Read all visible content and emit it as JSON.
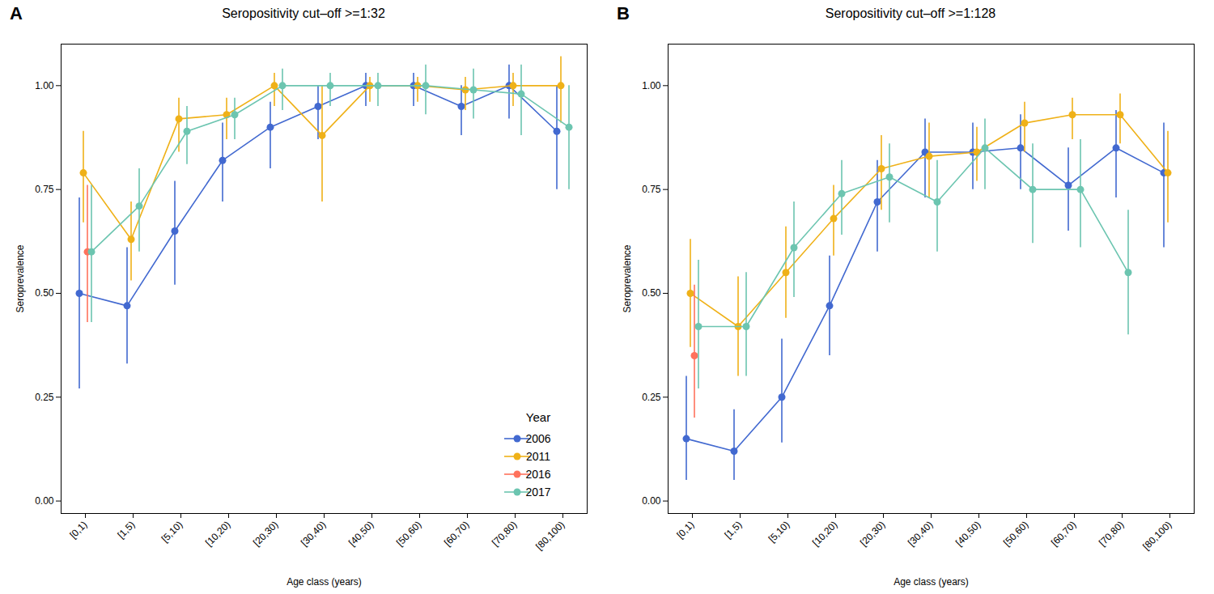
{
  "chart_data": [
    {
      "type": "line",
      "title": "Seropositivity cut–off >=1:32",
      "annotations": [
        "A"
      ],
      "xlabel": "Age class (years)",
      "ylabel": "Seroprevalence",
      "categories": [
        "[0,1)",
        "[1,5)",
        "[5,10)",
        "[10,20)",
        "[20,30)",
        "[30,40)",
        "[40,50)",
        "[50,60)",
        "[60,70)",
        "[70,80)",
        "[80,100)"
      ],
      "ylim": [
        -0.03,
        1.1
      ],
      "yticks": [
        {
          "value": 0.0,
          "label": "0.00"
        },
        0.25,
        {
          "value": 0.5,
          "label": "0.50"
        },
        0.75,
        {
          "value": 1.0,
          "label": "1.00"
        }
      ],
      "legend": "lower right",
      "legend_title": "Year",
      "series": [
        {
          "name": "2006",
          "values": [
            0.5,
            0.47,
            0.65,
            0.82,
            0.9,
            0.95,
            1.0,
            1.0,
            0.95,
            1.0,
            0.89
          ],
          "lower": [
            0.27,
            0.33,
            0.52,
            0.72,
            0.8,
            0.87,
            0.95,
            0.95,
            0.88,
            0.92,
            0.75
          ],
          "upper": [
            0.73,
            0.61,
            0.77,
            0.91,
            0.96,
            1.0,
            1.03,
            1.03,
            1.0,
            1.05,
            1.0
          ]
        },
        {
          "name": "2011",
          "values": [
            0.79,
            0.63,
            0.92,
            0.93,
            1.0,
            0.88,
            1.0,
            1.0,
            0.99,
            1.0,
            1.0
          ],
          "lower": [
            0.67,
            0.53,
            0.84,
            0.87,
            0.95,
            0.72,
            0.96,
            0.96,
            0.94,
            0.95,
            0.91
          ],
          "upper": [
            0.89,
            0.72,
            0.97,
            0.97,
            1.03,
            1.0,
            1.02,
            1.02,
            1.02,
            1.03,
            1.07
          ]
        },
        {
          "name": "2016",
          "values": [
            0.6,
            null,
            null,
            null,
            null,
            null,
            null,
            null,
            null,
            null,
            null
          ],
          "lower": [
            0.43,
            null,
            null,
            null,
            null,
            null,
            null,
            null,
            null,
            null,
            null
          ],
          "upper": [
            0.76,
            null,
            null,
            null,
            null,
            null,
            null,
            null,
            null,
            null,
            null
          ]
        },
        {
          "name": "2017",
          "values": [
            0.6,
            0.71,
            0.89,
            0.93,
            1.0,
            1.0,
            1.0,
            1.0,
            0.99,
            0.98,
            0.9
          ],
          "lower": [
            0.43,
            0.6,
            0.81,
            0.87,
            0.94,
            0.95,
            0.95,
            0.93,
            0.92,
            0.88,
            0.75
          ],
          "upper": [
            0.76,
            0.8,
            0.95,
            0.97,
            1.04,
            1.03,
            1.03,
            1.05,
            1.04,
            1.05,
            1.0
          ]
        }
      ]
    },
    {
      "type": "line",
      "title": "Seropositivity cut–off >=1:128",
      "annotations": [
        "B"
      ],
      "xlabel": "Age class (years)",
      "ylabel": "Seroprevalence",
      "categories": [
        "[0,1)",
        "[1,5)",
        "[5,10)",
        "[10,20)",
        "[20,30)",
        "[30,40)",
        "[40,50)",
        "[50,60)",
        "[60,70)",
        "[70,80)",
        "[80,100)"
      ],
      "ylim": [
        -0.03,
        1.1
      ],
      "yticks": [
        {
          "value": 0.0,
          "label": "0.00"
        },
        0.25,
        {
          "value": 0.5,
          "label": "0.50"
        },
        0.75,
        {
          "value": 1.0,
          "label": "1.00"
        }
      ],
      "series": [
        {
          "name": "2006",
          "values": [
            0.15,
            0.12,
            0.25,
            0.47,
            0.72,
            0.84,
            0.84,
            0.85,
            0.76,
            0.85,
            0.79
          ],
          "lower": [
            0.05,
            0.05,
            0.14,
            0.35,
            0.6,
            0.73,
            0.75,
            0.75,
            0.65,
            0.73,
            0.61
          ],
          "upper": [
            0.3,
            0.22,
            0.39,
            0.59,
            0.82,
            0.92,
            0.91,
            0.93,
            0.85,
            0.94,
            0.91
          ]
        },
        {
          "name": "2011",
          "values": [
            0.5,
            0.42,
            0.55,
            0.68,
            0.8,
            0.83,
            0.84,
            0.91,
            0.93,
            0.93,
            0.79
          ],
          "lower": [
            0.37,
            0.3,
            0.44,
            0.59,
            0.7,
            0.73,
            0.77,
            0.84,
            0.87,
            0.86,
            0.67
          ],
          "upper": [
            0.63,
            0.54,
            0.66,
            0.76,
            0.88,
            0.91,
            0.9,
            0.96,
            0.97,
            0.98,
            0.89
          ]
        },
        {
          "name": "2016",
          "values": [
            0.35,
            null,
            null,
            null,
            null,
            null,
            null,
            null,
            null,
            null,
            null
          ],
          "lower": [
            0.2,
            null,
            null,
            null,
            null,
            null,
            null,
            null,
            null,
            null,
            null
          ],
          "upper": [
            0.52,
            null,
            null,
            null,
            null,
            null,
            null,
            null,
            null,
            null,
            null
          ]
        },
        {
          "name": "2017",
          "values": [
            0.42,
            0.42,
            0.61,
            0.74,
            0.78,
            0.72,
            0.85,
            0.75,
            0.75,
            0.55,
            null
          ],
          "lower": [
            0.27,
            0.3,
            0.49,
            0.64,
            0.67,
            0.6,
            0.75,
            0.62,
            0.61,
            0.4,
            null
          ],
          "upper": [
            0.58,
            0.55,
            0.72,
            0.82,
            0.86,
            0.82,
            0.92,
            0.86,
            0.87,
            0.7,
            null
          ]
        }
      ]
    }
  ]
}
